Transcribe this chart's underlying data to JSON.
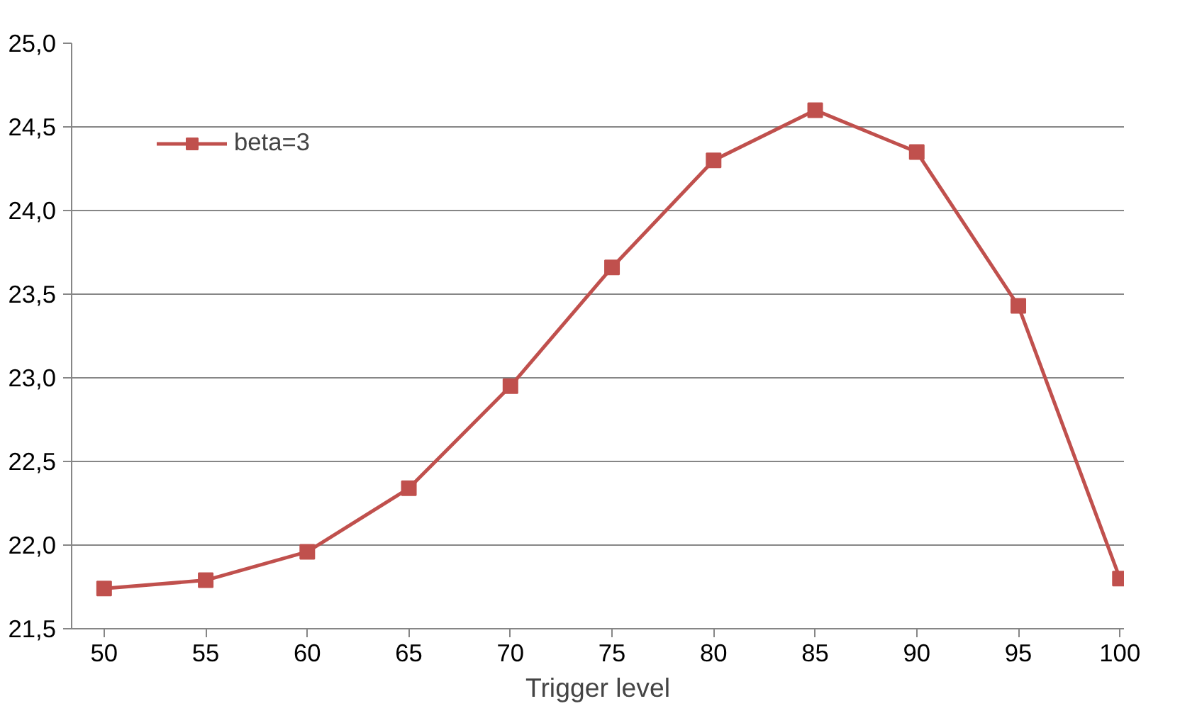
{
  "chart_data": {
    "type": "line",
    "xlabel": "Trigger level",
    "x": [
      50,
      55,
      60,
      65,
      70,
      75,
      80,
      85,
      90,
      95,
      100
    ],
    "series": [
      {
        "name": "beta=3",
        "color": "#c0504d",
        "values": [
          21.74,
          21.79,
          21.96,
          22.34,
          22.95,
          23.66,
          24.3,
          24.6,
          24.35,
          23.43,
          21.8
        ]
      }
    ],
    "xlim": [
      48.4,
      100.2
    ],
    "xticks": [
      50,
      55,
      60,
      65,
      70,
      75,
      80,
      85,
      90,
      95,
      100
    ],
    "ylim": [
      21.5,
      25.0
    ],
    "yticks": [
      {
        "value": 21.5,
        "label": "21,5"
      },
      {
        "value": 22.0,
        "label": "22,0"
      },
      {
        "value": 22.5,
        "label": "22,5"
      },
      {
        "value": 23.0,
        "label": "23,0"
      },
      {
        "value": 23.5,
        "label": "23,5"
      },
      {
        "value": 24.0,
        "label": "24,0"
      },
      {
        "value": 24.5,
        "label": "24,5"
      },
      {
        "value": 25.0,
        "label": "25,0"
      }
    ],
    "grid": "y",
    "legend": "top left",
    "marker": "square",
    "line_style": "solid"
  }
}
